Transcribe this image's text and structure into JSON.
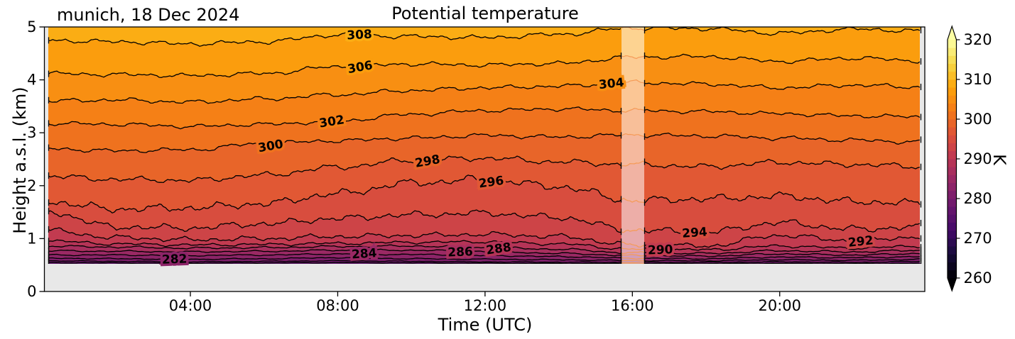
{
  "figure": {
    "title": "Potential temperature",
    "annotation": "munich, 18 Dec 2024"
  },
  "axes": {
    "x": {
      "label": "Time (UTC)",
      "ticks": [
        {
          "hour": 4,
          "label": "04:00"
        },
        {
          "hour": 8,
          "label": "08:00"
        },
        {
          "hour": 12,
          "label": "12:00"
        },
        {
          "hour": 16,
          "label": "16:00"
        },
        {
          "hour": 20,
          "label": "20:00"
        }
      ],
      "range_hours": [
        0,
        24
      ]
    },
    "y": {
      "label": "Height a.s.l. (km)",
      "ticks": [
        "0",
        "1",
        "2",
        "3",
        "4",
        "5"
      ],
      "range_km": [
        0,
        5
      ]
    }
  },
  "colorbar": {
    "label": "K",
    "min": 260,
    "max": 320,
    "step_K": 2,
    "ticks": [
      "260",
      "270",
      "280",
      "290",
      "300",
      "310",
      "320"
    ],
    "extend": "both"
  },
  "chart_data": {
    "type": "heatmap",
    "representation": "filled contour plot (potential temperature, K) over time and height",
    "title": "Potential temperature",
    "xlabel": "Time (UTC)",
    "ylabel": "Height a.s.l. (km)",
    "units": "K",
    "x_range_hours": [
      0,
      24
    ],
    "y_range_km": [
      0,
      5
    ],
    "data_bottom_km": 0.52,
    "gap_band_hours": [
      15.7,
      16.32
    ],
    "contour_interval_K": 2,
    "control_hours": [
      0,
      2,
      4,
      6,
      8,
      10,
      12,
      14,
      16,
      18,
      20,
      22,
      24
    ],
    "contours": [
      {
        "level_K": 308,
        "heights_km": [
          4.75,
          4.72,
          4.68,
          4.72,
          4.85,
          4.82,
          4.8,
          4.86,
          4.98,
          4.97,
          4.88,
          4.96,
          4.92
        ],
        "wiggle_km": 0.04
      },
      {
        "level_K": 306,
        "heights_km": [
          4.12,
          4.1,
          4.08,
          4.12,
          4.25,
          4.3,
          4.28,
          4.31,
          4.43,
          4.44,
          4.35,
          4.41,
          4.36
        ],
        "wiggle_km": 0.038
      },
      {
        "level_K": 304,
        "heights_km": [
          3.6,
          3.62,
          3.58,
          3.64,
          3.72,
          3.8,
          3.85,
          3.88,
          3.95,
          3.92,
          3.85,
          3.9,
          3.86
        ],
        "wiggle_km": 0.038
      },
      {
        "level_K": 302,
        "heights_km": [
          3.18,
          3.16,
          3.12,
          3.16,
          3.22,
          3.35,
          3.42,
          3.45,
          3.42,
          3.4,
          3.36,
          3.32,
          3.3
        ],
        "wiggle_km": 0.036
      },
      {
        "level_K": 300,
        "heights_km": [
          2.7,
          2.66,
          2.68,
          2.8,
          2.85,
          2.9,
          2.95,
          2.92,
          2.96,
          2.94,
          2.9,
          2.86,
          2.82
        ],
        "wiggle_km": 0.038
      },
      {
        "level_K": 298,
        "heights_km": [
          2.18,
          2.12,
          2.1,
          2.2,
          2.35,
          2.48,
          2.52,
          2.45,
          2.4,
          2.36,
          2.44,
          2.4,
          2.36
        ],
        "wiggle_km": 0.05
      },
      {
        "level_K": 296,
        "heights_km": [
          1.7,
          1.56,
          1.58,
          1.66,
          1.85,
          2.05,
          2.12,
          1.98,
          1.72,
          1.75,
          1.8,
          1.7,
          1.66
        ],
        "wiggle_km": 0.07
      },
      {
        "level_K": 294,
        "heights_km": [
          1.52,
          1.22,
          1.2,
          1.28,
          1.38,
          1.45,
          1.48,
          1.4,
          1.16,
          1.12,
          1.3,
          1.18,
          1.22
        ],
        "wiggle_km": 0.06
      },
      {
        "level_K": 292,
        "heights_km": [
          1.16,
          1.02,
          0.98,
          1.0,
          1.04,
          1.06,
          1.08,
          1.04,
          0.88,
          0.86,
          1.06,
          0.96,
          1.04
        ],
        "wiggle_km": 0.045
      },
      {
        "level_K": 290,
        "heights_km": [
          0.96,
          0.9,
          0.88,
          0.89,
          0.91,
          0.93,
          0.94,
          0.9,
          0.8,
          0.79,
          0.86,
          0.82,
          0.86
        ],
        "wiggle_km": 0.026
      },
      {
        "level_K": 288,
        "heights_km": [
          0.86,
          0.84,
          0.82,
          0.83,
          0.85,
          0.86,
          0.83,
          0.8,
          0.73,
          0.72,
          0.77,
          0.75,
          0.78
        ],
        "wiggle_km": 0.018
      },
      {
        "level_K": 286,
        "heights_km": [
          0.77,
          0.76,
          0.75,
          0.76,
          0.78,
          0.78,
          0.76,
          0.72,
          0.68,
          0.67,
          0.71,
          0.69,
          0.72
        ],
        "wiggle_km": 0.014
      },
      {
        "level_K": 284,
        "heights_km": [
          0.69,
          0.69,
          0.68,
          0.69,
          0.71,
          0.7,
          0.68,
          0.66,
          0.63,
          0.62,
          0.65,
          0.64,
          0.66
        ],
        "wiggle_km": 0.012
      },
      {
        "level_K": 282,
        "heights_km": [
          0.63,
          0.62,
          0.61,
          0.62,
          0.64,
          0.62,
          0.61,
          0.6,
          0.585,
          0.58,
          0.6,
          0.59,
          0.61
        ],
        "wiggle_km": 0.01
      },
      {
        "level_K": 280,
        "heights_km": [
          0.58,
          0.57,
          0.56,
          0.57,
          0.58,
          0.57,
          0.56,
          0.555,
          0.55,
          0.55,
          0.56,
          0.55,
          0.57
        ],
        "wiggle_km": 0.008
      },
      {
        "level_K": 278,
        "heights_km": [
          0.545,
          0.54,
          0.535,
          0.54,
          0.545,
          0.54,
          0.535,
          0.53,
          0.525,
          0.525,
          0.53,
          0.525,
          0.535
        ],
        "wiggle_km": 0.006
      }
    ],
    "contour_labels": [
      {
        "level_K": 308,
        "at_hour": 8.59,
        "rotation_deg": -3
      },
      {
        "level_K": 306,
        "at_hour": 8.61,
        "rotation_deg": -10
      },
      {
        "level_K": 304,
        "at_hour": 15.43,
        "rotation_deg": -6
      },
      {
        "level_K": 302,
        "at_hour": 7.84,
        "rotation_deg": -9
      },
      {
        "level_K": 300,
        "at_hour": 6.18,
        "rotation_deg": -10
      },
      {
        "level_K": 298,
        "at_hour": 10.44,
        "rotation_deg": -10
      },
      {
        "level_K": 296,
        "at_hour": 12.17,
        "rotation_deg": -8
      },
      {
        "level_K": 294,
        "at_hour": 17.69,
        "rotation_deg": -4
      },
      {
        "level_K": 292,
        "at_hour": 22.2,
        "rotation_deg": -6
      },
      {
        "level_K": 290,
        "at_hour": 16.76,
        "rotation_deg": -2
      },
      {
        "level_K": 288,
        "at_hour": 12.37,
        "rotation_deg": -8
      },
      {
        "level_K": 286,
        "at_hour": 11.33,
        "rotation_deg": -2
      },
      {
        "level_K": 284,
        "at_hour": 8.72,
        "rotation_deg": -4
      },
      {
        "level_K": 282,
        "at_hour": 3.57,
        "rotation_deg": -2
      }
    ]
  },
  "colors": {
    "colormap_name": "inferno",
    "colormap_anchors": [
      {
        "t": 0.0,
        "hex": "#000004"
      },
      {
        "t": 0.1,
        "hex": "#160b39"
      },
      {
        "t": 0.2,
        "hex": "#420a68"
      },
      {
        "t": 0.3,
        "hex": "#6a176e"
      },
      {
        "t": 0.4,
        "hex": "#932667"
      },
      {
        "t": 0.5,
        "hex": "#bc3754"
      },
      {
        "t": 0.6,
        "hex": "#dd513a"
      },
      {
        "t": 0.7,
        "hex": "#f37819"
      },
      {
        "t": 0.8,
        "hex": "#fca50a"
      },
      {
        "t": 0.9,
        "hex": "#f6d746"
      },
      {
        "t": 1.0,
        "hex": "#fcffa4"
      }
    ],
    "no_data_gray": "#e8e8e8",
    "contour_line": "#000000",
    "gap_overlay": "rgba(255,255,255,0.55)",
    "gap_line_orange": "#f59a56",
    "figure_bg": "#ffffff"
  }
}
